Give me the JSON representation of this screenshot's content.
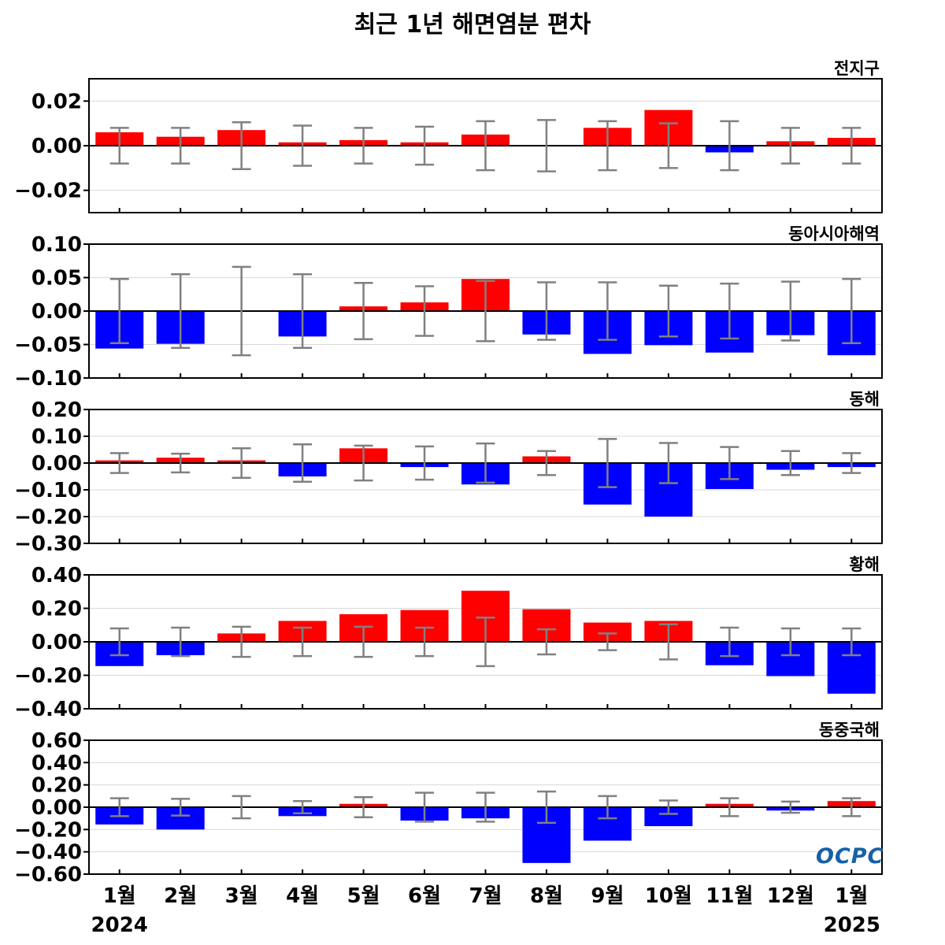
{
  "title": "최근 1년 해면염분 편차",
  "logo": "OCPC",
  "colors": {
    "positive": "#ff0000",
    "negative": "#0000ff",
    "errorbar": "#808080",
    "grid": "#d9d9d9"
  },
  "chart_data": {
    "type": "bar",
    "categories": [
      "1월",
      "2월",
      "3월",
      "4월",
      "5월",
      "6월",
      "7월",
      "8월",
      "9월",
      "10월",
      "11월",
      "12월",
      "1월"
    ],
    "year_labels": {
      "start": "2024",
      "end": "2025"
    },
    "grid": true,
    "panels": [
      {
        "name": "전지구",
        "ylim": [
          -0.03,
          0.03
        ],
        "yticks": [
          "0.02",
          "0.00",
          "−0.02"
        ],
        "ytick_values": [
          0.02,
          0.0,
          -0.02
        ],
        "values": [
          0.006,
          0.004,
          0.007,
          0.0015,
          0.0025,
          0.0015,
          0.005,
          -0.0005,
          0.008,
          0.016,
          -0.003,
          0.002,
          0.0035
        ],
        "errors": [
          0.008,
          0.008,
          0.0105,
          0.009,
          0.008,
          0.0085,
          0.011,
          0.0115,
          0.011,
          0.01,
          0.011,
          0.008,
          0.008
        ]
      },
      {
        "name": "동아시아해역",
        "ylim": [
          -0.1,
          0.1
        ],
        "yticks": [
          "0.10",
          "0.05",
          "0.00",
          "−0.05",
          "−0.10"
        ],
        "ytick_values": [
          0.1,
          0.05,
          0.0,
          -0.05,
          -0.1
        ],
        "values": [
          -0.056,
          -0.049,
          -0.001,
          -0.038,
          0.007,
          0.013,
          0.048,
          -0.035,
          -0.064,
          -0.051,
          -0.062,
          -0.036,
          -0.066
        ],
        "errors": [
          0.048,
          0.055,
          0.066,
          0.055,
          0.042,
          0.037,
          0.045,
          0.043,
          0.043,
          0.038,
          0.041,
          0.044,
          0.048
        ]
      },
      {
        "name": "동해",
        "ylim": [
          -0.3,
          0.2
        ],
        "yticks": [
          "0.20",
          "0.10",
          "0.00",
          "−0.10",
          "−0.20",
          "−0.30"
        ],
        "ytick_values": [
          0.2,
          0.1,
          0.0,
          -0.1,
          -0.2,
          -0.3
        ],
        "values": [
          0.01,
          0.02,
          0.01,
          -0.05,
          0.055,
          -0.015,
          -0.08,
          0.025,
          -0.155,
          -0.2,
          -0.097,
          -0.025,
          -0.015
        ],
        "errors": [
          0.037,
          0.035,
          0.055,
          0.07,
          0.065,
          0.062,
          0.073,
          0.045,
          0.09,
          0.075,
          0.06,
          0.045,
          0.037
        ]
      },
      {
        "name": "황해",
        "ylim": [
          -0.4,
          0.4
        ],
        "yticks": [
          "0.40",
          "0.20",
          "0.00",
          "−0.20",
          "−0.40"
        ],
        "ytick_values": [
          0.4,
          0.2,
          0.0,
          -0.2,
          -0.4
        ],
        "values": [
          -0.145,
          -0.08,
          0.05,
          0.125,
          0.165,
          0.19,
          0.305,
          0.195,
          0.115,
          0.125,
          -0.14,
          -0.205,
          -0.31
        ],
        "errors": [
          0.08,
          0.085,
          0.09,
          0.085,
          0.09,
          0.085,
          0.145,
          0.075,
          0.05,
          0.105,
          0.085,
          0.08,
          0.08
        ]
      },
      {
        "name": "동중국해",
        "ylim": [
          -0.6,
          0.6
        ],
        "yticks": [
          "0.60",
          "0.40",
          "0.20",
          "0.00",
          "−0.20",
          "−0.40",
          "−0.60"
        ],
        "ytick_values": [
          0.6,
          0.4,
          0.2,
          0.0,
          -0.2,
          -0.4,
          -0.6
        ],
        "values": [
          -0.155,
          -0.2,
          -0.01,
          -0.08,
          0.03,
          -0.12,
          -0.1,
          -0.5,
          -0.3,
          -0.17,
          0.03,
          -0.03,
          0.055
        ],
        "errors": [
          0.08,
          0.075,
          0.1,
          0.055,
          0.09,
          0.13,
          0.13,
          0.14,
          0.1,
          0.06,
          0.08,
          0.05,
          0.08
        ]
      }
    ]
  }
}
